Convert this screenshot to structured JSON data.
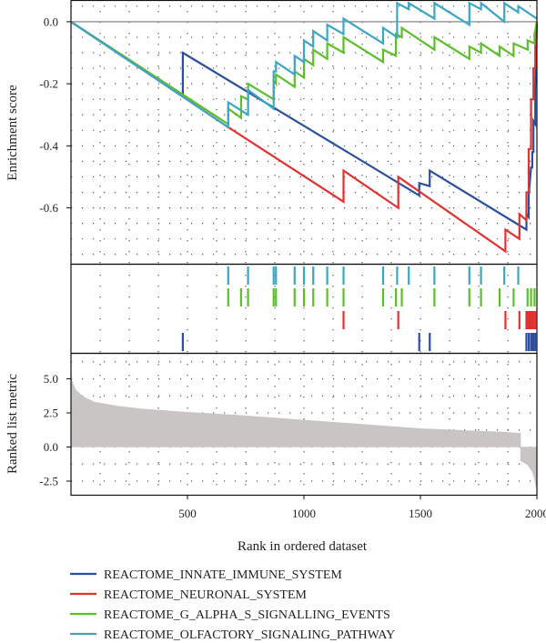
{
  "chart_data": {
    "type": "line",
    "xlabel": "Rank in ordered dataset",
    "x_ticks": [
      500,
      1000,
      1500,
      2000
    ],
    "xlim": [
      0,
      2000
    ],
    "colors": {
      "REACTOME_INNATE_IMMUNE_SYSTEM": "#2b4f9e",
      "REACTOME_NEURONAL_SYSTEM": "#e0322f",
      "REACTOME_G_ALPHA_S_SIGNALLING_EVENTS": "#5cbf2a",
      "REACTOME_OLFACTORY_SIGNALING_PATHWAY": "#3ba6c4",
      "metric_fill": "#cac5c5",
      "zero_line": "#9a9a9a"
    },
    "enrichment": {
      "ylabel": "Enrichment score",
      "ylim": [
        -0.78,
        0.07
      ],
      "y_ticks": [
        "0.0",
        "-0.2",
        "-0.4",
        "-0.6"
      ],
      "y_tick_values": [
        0,
        -0.2,
        -0.4,
        -0.6
      ],
      "series": [
        {
          "name": "REACTOME_INNATE_IMMUNE_SYSTEM",
          "points": [
            [
              0,
              0
            ],
            [
              480,
              -0.24
            ],
            [
              480,
              -0.1
            ],
            [
              1495,
              -0.56
            ],
            [
              1495,
              -0.52
            ],
            [
              1540,
              -0.53
            ],
            [
              1540,
              -0.48
            ],
            [
              1955,
              -0.67
            ],
            [
              1955,
              -0.62
            ],
            [
              1965,
              -0.63
            ],
            [
              1965,
              -0.56
            ],
            [
              1975,
              -0.47
            ],
            [
              1975,
              -0.47
            ],
            [
              1980,
              -0.47
            ],
            [
              1980,
              -0.42
            ],
            [
              1985,
              -0.42
            ],
            [
              1985,
              -0.32
            ],
            [
              1993,
              -0.33
            ],
            [
              1993,
              -0.22
            ],
            [
              2000,
              0
            ]
          ]
        },
        {
          "name": "REACTOME_NEURONAL_SYSTEM",
          "points": [
            [
              0,
              0
            ],
            [
              675,
              -0.34
            ],
            [
              1170,
              -0.58
            ],
            [
              1170,
              -0.48
            ],
            [
              1405,
              -0.6
            ],
            [
              1405,
              -0.5
            ],
            [
              1865,
              -0.74
            ],
            [
              1865,
              -0.67
            ],
            [
              1925,
              -0.7
            ],
            [
              1925,
              -0.62
            ],
            [
              1955,
              -0.64
            ],
            [
              1955,
              -0.55
            ],
            [
              1965,
              -0.55
            ],
            [
              1965,
              -0.41
            ],
            [
              1975,
              -0.41
            ],
            [
              1975,
              -0.25
            ],
            [
              1985,
              -0.25
            ],
            [
              1985,
              -0.15
            ],
            [
              1993,
              -0.15
            ],
            [
              1993,
              -0.08
            ],
            [
              2000,
              0
            ]
          ]
        },
        {
          "name": "REACTOME_G_ALPHA_S_SIGNALLING_EVENTS",
          "points": [
            [
              0,
              0
            ],
            [
              675,
              -0.33
            ],
            [
              675,
              -0.28
            ],
            [
              730,
              -0.31
            ],
            [
              730,
              -0.24
            ],
            [
              760,
              -0.25
            ],
            [
              760,
              -0.2
            ],
            [
              870,
              -0.25
            ],
            [
              870,
              -0.19
            ],
            [
              880,
              -0.2
            ],
            [
              880,
              -0.17
            ],
            [
              960,
              -0.21
            ],
            [
              960,
              -0.16
            ],
            [
              1000,
              -0.18
            ],
            [
              1000,
              -0.12
            ],
            [
              1040,
              -0.14
            ],
            [
              1040,
              -0.09
            ],
            [
              1100,
              -0.12
            ],
            [
              1100,
              -0.07
            ],
            [
              1170,
              -0.1
            ],
            [
              1170,
              -0.05
            ],
            [
              1340,
              -0.13
            ],
            [
              1340,
              -0.09
            ],
            [
              1395,
              -0.11
            ],
            [
              1395,
              -0.04
            ],
            [
              1420,
              -0.05
            ],
            [
              1420,
              -0.02
            ],
            [
              1560,
              -0.09
            ],
            [
              1560,
              -0.05
            ],
            [
              1710,
              -0.12
            ],
            [
              1710,
              -0.08
            ],
            [
              1760,
              -0.1
            ],
            [
              1760,
              -0.07
            ],
            [
              1840,
              -0.11
            ],
            [
              1840,
              -0.08
            ],
            [
              1900,
              -0.11
            ],
            [
              1900,
              -0.07
            ],
            [
              1960,
              -0.09
            ],
            [
              1960,
              -0.06
            ],
            [
              1990,
              -0.07
            ],
            [
              1990,
              -0.04
            ],
            [
              2000,
              0
            ]
          ]
        },
        {
          "name": "REACTOME_OLFACTORY_SIGNALING_PATHWAY",
          "points": [
            [
              0,
              0
            ],
            [
              675,
              -0.34
            ],
            [
              675,
              -0.26
            ],
            [
              760,
              -0.3
            ],
            [
              760,
              -0.22
            ],
            [
              870,
              -0.28
            ],
            [
              870,
              -0.16
            ],
            [
              880,
              -0.16
            ],
            [
              880,
              -0.13
            ],
            [
              960,
              -0.17
            ],
            [
              960,
              -0.11
            ],
            [
              1000,
              -0.13
            ],
            [
              1000,
              -0.06
            ],
            [
              1040,
              -0.08
            ],
            [
              1040,
              -0.03
            ],
            [
              1100,
              -0.06
            ],
            [
              1100,
              -0.01
            ],
            [
              1170,
              -0.04
            ],
            [
              1170,
              0.01
            ],
            [
              1340,
              -0.07
            ],
            [
              1340,
              -0.02
            ],
            [
              1400,
              -0.05
            ],
            [
              1400,
              0.06
            ],
            [
              1450,
              0.04
            ],
            [
              1450,
              0.06
            ],
            [
              1560,
              0.01
            ],
            [
              1560,
              0.06
            ],
            [
              1710,
              -0.01
            ],
            [
              1710,
              0.06
            ],
            [
              1760,
              0.04
            ],
            [
              1760,
              0.06
            ],
            [
              1860,
              0.0
            ],
            [
              1860,
              0.06
            ],
            [
              1920,
              0.03
            ],
            [
              1920,
              0.05
            ],
            [
              2000,
              0.01
            ]
          ]
        }
      ]
    },
    "hits": [
      {
        "name": "REACTOME_OLFACTORY_SIGNALING_PATHWAY",
        "ranks": [
          675,
          760,
          870,
          880,
          960,
          1000,
          1040,
          1100,
          1170,
          1340,
          1400,
          1450,
          1560,
          1710,
          1760,
          1860,
          1920
        ]
      },
      {
        "name": "REACTOME_G_ALPHA_S_SIGNALLING_EVENTS",
        "ranks": [
          675,
          730,
          760,
          870,
          880,
          960,
          1000,
          1040,
          1100,
          1170,
          1340,
          1395,
          1420,
          1560,
          1710,
          1760,
          1840,
          1900,
          1960,
          1975,
          1990
        ]
      },
      {
        "name": "REACTOME_NEURONAL_SYSTEM",
        "ranks": [
          1170,
          1405,
          1865,
          1925,
          1955,
          1960,
          1965,
          1970,
          1975,
          1980,
          1985,
          1993
        ]
      },
      {
        "name": "REACTOME_INNATE_IMMUNE_SYSTEM",
        "ranks": [
          480,
          1495,
          1540,
          1955,
          1965,
          1975,
          1980,
          1985,
          1993
        ]
      }
    ],
    "metric": {
      "ylabel": "Ranked list metric",
      "ylim": [
        -3.5,
        6.9
      ],
      "y_ticks": [
        "5.0",
        "2.5",
        "0.0",
        "-2.5"
      ],
      "y_tick_values": [
        5,
        2.5,
        0,
        -2.5
      ],
      "profile": [
        [
          0,
          5.5
        ],
        [
          5,
          4.8
        ],
        [
          20,
          4.2
        ],
        [
          50,
          3.7
        ],
        [
          100,
          3.3
        ],
        [
          200,
          3.0
        ],
        [
          300,
          2.8
        ],
        [
          500,
          2.55
        ],
        [
          700,
          2.35
        ],
        [
          900,
          2.1
        ],
        [
          1100,
          1.85
        ],
        [
          1300,
          1.6
        ],
        [
          1500,
          1.35
        ],
        [
          1700,
          1.2
        ],
        [
          1850,
          1.1
        ],
        [
          1930,
          1.0
        ],
        [
          1930,
          -1.0
        ],
        [
          1960,
          -1.3
        ],
        [
          1980,
          -1.8
        ],
        [
          1990,
          -2.3
        ],
        [
          1995,
          -2.8
        ],
        [
          2000,
          -3.1
        ]
      ]
    },
    "legend": [
      {
        "label": "REACTOME_INNATE_IMMUNE_SYSTEM",
        "color": "#2b4f9e"
      },
      {
        "label": "REACTOME_NEURONAL_SYSTEM",
        "color": "#e0322f"
      },
      {
        "label": "REACTOME_G_ALPHA_S_SIGNALLING_EVENTS",
        "color": "#5cbf2a"
      },
      {
        "label": "REACTOME_OLFACTORY_SIGNALING_PATHWAY",
        "color": "#3ba6c4"
      }
    ]
  }
}
